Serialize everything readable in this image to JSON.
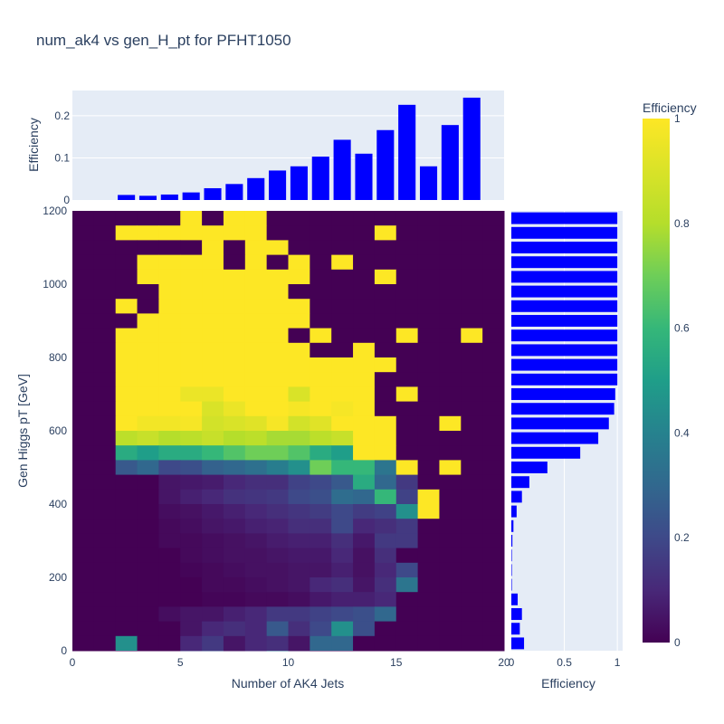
{
  "chart_data": {
    "type": "heatmap",
    "title": "num_ak4 vs gen_H_pt for PFHT1050",
    "xlabel": "Number of AK4 Jets",
    "ylabel": "Gen Higgs pT [GeV]",
    "x_ticks": [
      0,
      5,
      10,
      15,
      20
    ],
    "y_ticks": [
      0,
      200,
      400,
      600,
      800,
      1000,
      1200
    ],
    "xlim": [
      0,
      20
    ],
    "ylim": [
      0,
      1200
    ],
    "x_bin_width": 1,
    "y_bin_width": 40,
    "colorscale": "viridis",
    "colorbar": {
      "title": "Efficiency",
      "range": [
        0,
        1
      ],
      "ticks": [
        0,
        0.2,
        0.4,
        0.6,
        0.8,
        1
      ]
    },
    "heatmap_rows_top_to_bottom": [
      [
        0,
        0,
        0,
        0,
        0,
        1,
        0,
        1,
        1,
        0,
        0,
        0,
        0,
        0,
        0,
        0,
        0,
        0,
        0,
        0
      ],
      [
        0,
        0,
        1,
        1,
        1,
        1,
        1,
        1,
        1,
        0,
        0,
        0,
        0,
        0,
        1,
        0,
        0,
        0,
        0,
        0
      ],
      [
        0,
        0,
        0,
        0,
        0,
        0,
        1,
        0,
        1,
        1,
        0,
        0,
        0,
        0,
        0,
        0,
        0,
        0,
        0,
        0
      ],
      [
        0,
        0,
        0,
        1,
        1,
        1,
        1,
        0,
        1,
        0,
        1,
        0,
        1,
        0,
        0,
        0,
        0,
        0,
        0,
        0
      ],
      [
        0,
        0,
        0,
        1,
        1,
        1,
        1,
        1,
        1,
        1,
        1,
        0,
        0,
        0,
        1,
        0,
        0,
        0,
        0,
        0
      ],
      [
        0,
        0,
        0,
        0,
        1,
        1,
        1,
        1,
        1,
        1,
        0,
        0,
        0,
        0,
        0,
        0,
        0,
        0,
        0,
        0
      ],
      [
        0,
        0,
        1,
        0,
        1,
        1,
        1,
        1,
        1,
        1,
        1,
        0,
        0,
        0,
        0,
        0,
        0,
        0,
        0,
        0
      ],
      [
        0,
        0,
        0,
        1,
        1,
        1,
        1,
        1,
        1,
        1,
        1,
        0,
        0,
        0,
        0,
        0,
        0,
        0,
        0,
        0
      ],
      [
        0,
        0,
        1,
        1,
        1,
        1,
        1,
        1,
        1,
        1,
        0,
        1,
        0,
        0,
        0,
        1,
        0,
        0,
        1,
        0
      ],
      [
        0,
        0,
        1,
        1,
        1,
        1,
        1,
        1,
        1,
        1,
        1,
        0,
        0,
        1,
        0,
        0,
        0,
        0,
        0,
        0
      ],
      [
        0,
        0,
        1,
        1,
        1,
        1,
        1,
        1,
        1,
        1,
        1,
        1,
        1,
        1,
        1,
        0,
        0,
        0,
        0,
        0
      ],
      [
        0,
        0,
        1,
        1,
        1,
        1,
        1,
        1,
        1,
        1,
        1,
        1,
        1,
        1,
        0,
        0,
        0,
        0,
        0,
        0
      ],
      [
        0,
        0,
        1,
        1,
        1,
        0.95,
        0.95,
        1,
        1,
        1,
        0.9,
        1,
        1,
        1,
        0,
        1,
        0,
        0,
        0,
        0
      ],
      [
        0,
        0,
        1,
        1,
        1,
        1,
        0.9,
        0.95,
        1,
        1,
        0.98,
        1,
        0.98,
        1,
        0,
        0,
        0,
        0,
        0,
        0
      ],
      [
        0,
        0,
        1,
        0.97,
        0.97,
        0.98,
        0.88,
        0.9,
        0.92,
        0.98,
        0.88,
        0.92,
        1,
        1,
        1,
        0,
        0,
        1,
        0,
        0
      ],
      [
        0,
        0,
        0.82,
        0.85,
        0.8,
        0.82,
        0.85,
        0.8,
        0.82,
        0.78,
        0.78,
        0.82,
        0.85,
        1,
        1,
        0,
        0,
        0,
        0,
        0
      ],
      [
        0,
        0,
        0.55,
        0.5,
        0.55,
        0.55,
        0.6,
        0.65,
        0.7,
        0.7,
        0.65,
        0.55,
        0.5,
        1,
        1,
        0,
        0,
        0,
        0,
        0
      ],
      [
        0,
        0,
        0.25,
        0.3,
        0.2,
        0.22,
        0.28,
        0.3,
        0.33,
        0.38,
        0.45,
        0.7,
        0.6,
        0.6,
        0.35,
        1,
        0,
        1,
        0,
        0
      ],
      [
        0,
        0,
        0,
        0,
        0.05,
        0.06,
        0.07,
        0.1,
        0.12,
        0.12,
        0.18,
        0.2,
        0.25,
        0.55,
        0.3,
        0.15,
        0,
        0,
        0,
        0
      ],
      [
        0,
        0,
        0,
        0,
        0.05,
        0.08,
        0.1,
        0.13,
        0.14,
        0.15,
        0.2,
        0.22,
        0.32,
        0.3,
        0.6,
        0.18,
        1,
        0,
        0,
        0
      ],
      [
        0,
        0,
        0,
        0,
        0.03,
        0.04,
        0.06,
        0.08,
        0.1,
        0.12,
        0.14,
        0.16,
        0.2,
        0.16,
        0.18,
        0.45,
        1,
        0,
        0,
        0
      ],
      [
        0,
        0,
        0,
        0,
        0.02,
        0.03,
        0.05,
        0.06,
        0.08,
        0.09,
        0.12,
        0.12,
        0.2,
        0.1,
        0.12,
        0.15,
        0,
        0,
        0,
        0
      ],
      [
        0,
        0,
        0,
        0,
        0.02,
        0.02,
        0.03,
        0.04,
        0.05,
        0.07,
        0.08,
        0.08,
        0.12,
        0.06,
        0.15,
        0.15,
        0,
        0,
        0,
        0
      ],
      [
        0,
        0,
        0,
        0,
        0,
        0.02,
        0.03,
        0.04,
        0.04,
        0.05,
        0.06,
        0.06,
        0.1,
        0.04,
        0.12,
        0,
        0,
        0,
        0,
        0
      ],
      [
        0,
        0,
        0,
        0,
        0,
        0.01,
        0.02,
        0.03,
        0.04,
        0.04,
        0.05,
        0.05,
        0.08,
        0.04,
        0.1,
        0.2,
        0,
        0,
        0,
        0
      ],
      [
        0,
        0,
        0,
        0,
        0,
        0,
        0.02,
        0.02,
        0.03,
        0.04,
        0.05,
        0.1,
        0.12,
        0.05,
        0.12,
        0.35,
        0,
        0,
        0,
        0
      ],
      [
        0,
        0,
        0,
        0,
        0,
        0,
        0.01,
        0.01,
        0.02,
        0.02,
        0.03,
        0.06,
        0.08,
        0.08,
        0.1,
        0,
        0,
        0,
        0,
        0
      ],
      [
        0,
        0,
        0,
        0,
        0.03,
        0.05,
        0.05,
        0.08,
        0.1,
        0.15,
        0.15,
        0.18,
        0.2,
        0.22,
        0.3,
        0,
        0,
        0,
        0,
        0
      ],
      [
        0,
        0,
        0,
        0,
        0,
        0.05,
        0.1,
        0.12,
        0.1,
        0.25,
        0.12,
        0.2,
        0.45,
        0.22,
        0,
        0,
        0,
        0,
        0,
        0
      ],
      [
        0,
        0,
        0.45,
        0,
        0,
        0.1,
        0.15,
        0.05,
        0.1,
        0.12,
        0.05,
        0.3,
        0.3,
        0,
        0,
        0,
        0,
        0,
        0,
        0
      ],
      [
        0,
        0,
        0,
        0,
        0,
        0.15,
        0.2,
        0.05,
        0.1,
        0.3,
        0.05,
        0,
        0,
        0,
        0,
        0,
        0,
        0,
        0,
        0
      ]
    ],
    "top_hist": {
      "ylabel": "Efficiency",
      "y_ticks": [
        0,
        0.1,
        0.2
      ],
      "ylim": [
        0,
        0.26
      ],
      "color": "#0000ff",
      "values": [
        0,
        0,
        0.012,
        0.01,
        0.013,
        0.018,
        0.028,
        0.038,
        0.052,
        0.07,
        0.08,
        0.103,
        0.143,
        0.11,
        0.166,
        0.226,
        0.08,
        0.178,
        0.243,
        0
      ]
    },
    "right_hist": {
      "xlabel": "Efficiency",
      "x_ticks": [
        0,
        0.5,
        1
      ],
      "x_tick_labels": [
        "0",
        "0.5",
        "1"
      ],
      "xlim": [
        0,
        1.05
      ],
      "color": "#0000ff",
      "values_top_to_bottom": [
        1,
        1,
        1,
        1,
        1,
        1,
        1,
        1,
        1,
        1,
        1,
        1,
        0.98,
        0.97,
        0.92,
        0.82,
        0.65,
        0.34,
        0.17,
        0.1,
        0.05,
        0.02,
        0.01,
        0.005,
        0.005,
        0.005,
        0.06,
        0.1,
        0.08,
        0.12,
        0.12
      ]
    }
  }
}
